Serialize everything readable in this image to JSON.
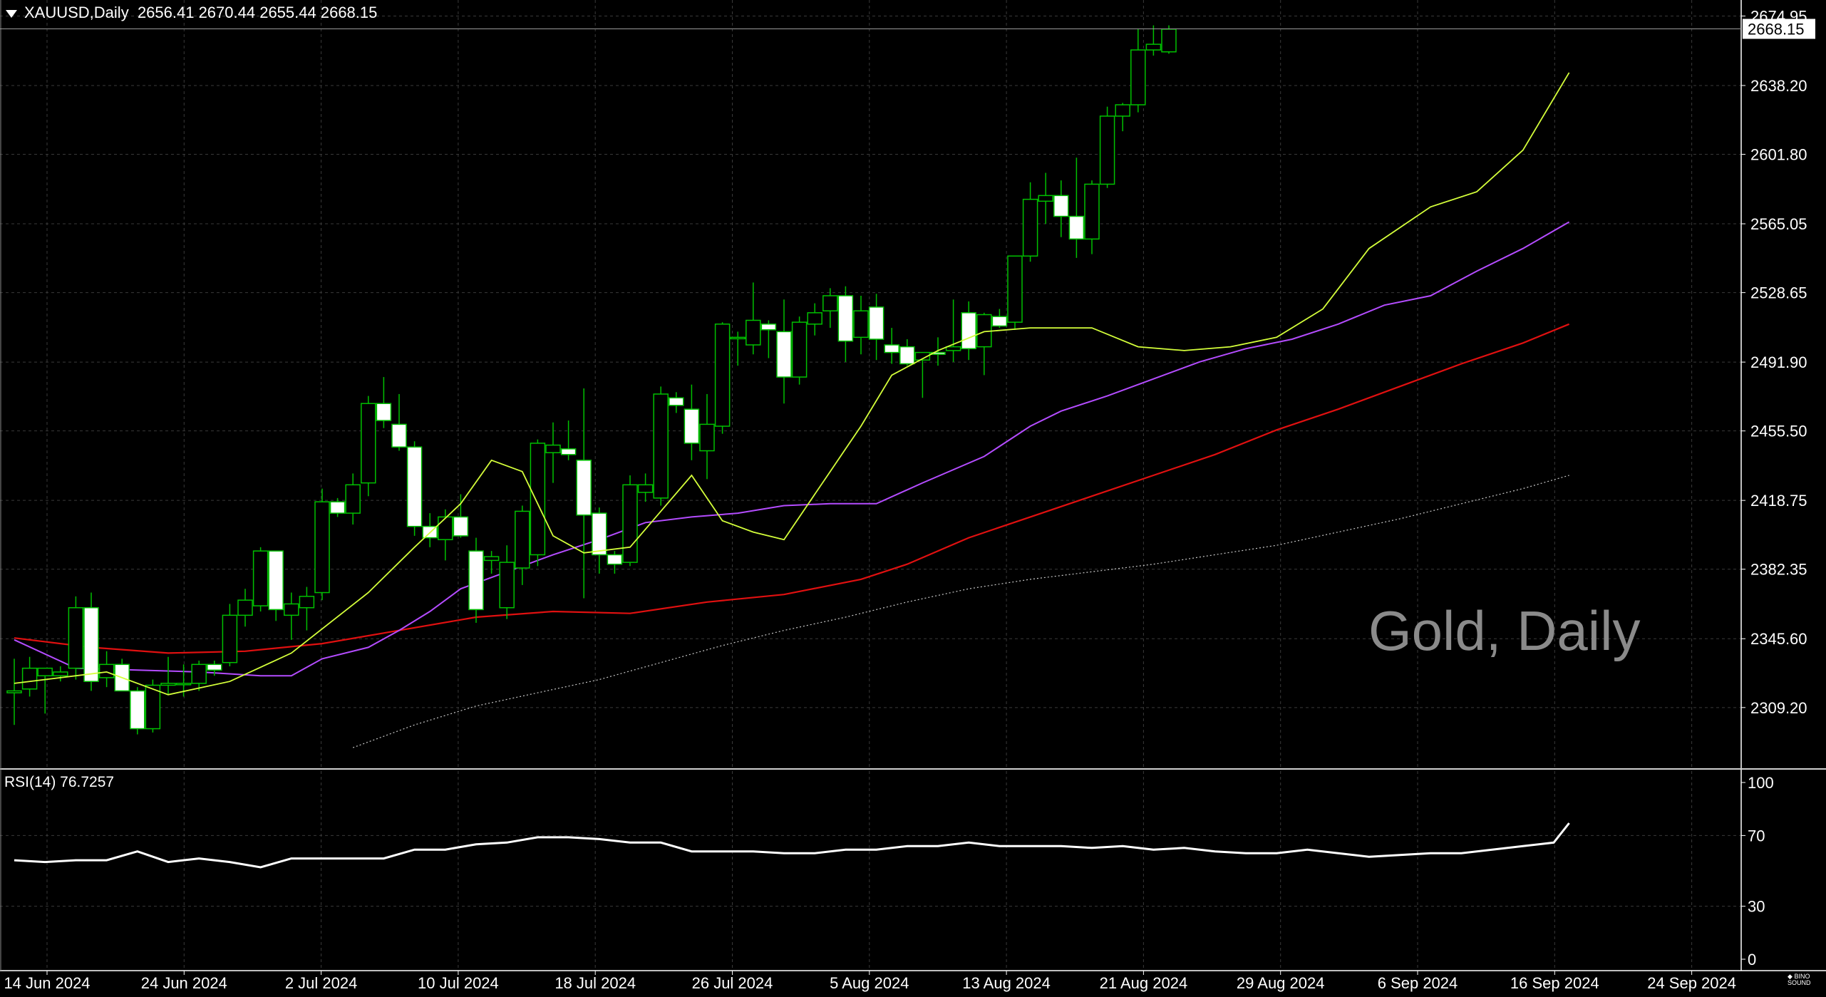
{
  "header": {
    "symbol": "XAUUSD,Daily",
    "ohlc": "2656.41 2670.44 2655.44 2668.15"
  },
  "watermark": "Gold, Daily",
  "rsi_label": "RSI(14) 76.7257",
  "logo_text": "BINO SOUND",
  "colors": {
    "background": "#000000",
    "grid": "#3a3a3a",
    "bull": "#00c000",
    "bear_fill": "#ffffff",
    "ma_fast": "#d4ff3a",
    "ma_mid": "#b44cff",
    "ma_slow": "#e01010",
    "ma_long": "#c8c8c8",
    "rsi": "#ffffff"
  },
  "chart_data": [
    {
      "type": "candlestick",
      "title": "XAUUSD,Daily",
      "current_price": "2668.15",
      "y_ticks": [
        "2674.95",
        "2638.20",
        "2601.80",
        "2565.05",
        "2528.65",
        "2491.90",
        "2455.50",
        "2418.75",
        "2382.35",
        "2345.60",
        "2309.20"
      ],
      "x_ticks": [
        "14 Jun 2024",
        "24 Jun 2024",
        "2 Jul 2024",
        "10 Jul 2024",
        "18 Jul 2024",
        "26 Jul 2024",
        "5 Aug 2024",
        "13 Aug 2024",
        "21 Aug 2024",
        "29 Aug 2024",
        "6 Sep 2024",
        "16 Sep 2024",
        "24 Sep 2024"
      ],
      "ylim": [
        2283,
        2686
      ],
      "grid": true,
      "ohlc": [
        [
          2317,
          2335,
          2300,
          2318
        ],
        [
          2319,
          2336,
          2315,
          2330
        ],
        [
          2326,
          2330,
          2306,
          2330
        ],
        [
          2326,
          2331,
          2323,
          2328
        ],
        [
          2330,
          2368,
          2324,
          2362
        ],
        [
          2362,
          2370,
          2318,
          2323
        ],
        [
          2325,
          2339,
          2320,
          2332
        ],
        [
          2332,
          2335,
          2318,
          2318
        ],
        [
          2318,
          2320,
          2295,
          2298
        ],
        [
          2298,
          2324,
          2296,
          2321
        ],
        [
          2321,
          2336,
          2316,
          2322
        ],
        [
          2322,
          2332,
          2315,
          2322
        ],
        [
          2322,
          2334,
          2318,
          2332
        ],
        [
          2332,
          2334,
          2326,
          2329
        ],
        [
          2333,
          2364,
          2331,
          2358
        ],
        [
          2358,
          2372,
          2352,
          2366
        ],
        [
          2363,
          2394,
          2360,
          2392
        ],
        [
          2392,
          2392,
          2355,
          2361
        ],
        [
          2358,
          2370,
          2345,
          2364
        ],
        [
          2362,
          2373,
          2350,
          2368
        ],
        [
          2370,
          2425,
          2366,
          2418
        ],
        [
          2418,
          2420,
          2410,
          2412
        ],
        [
          2412,
          2433,
          2406,
          2427
        ],
        [
          2428,
          2474,
          2421,
          2470
        ],
        [
          2470,
          2484,
          2457,
          2461
        ],
        [
          2459,
          2475,
          2445,
          2447
        ],
        [
          2447,
          2450,
          2400,
          2405
        ],
        [
          2405,
          2412,
          2394,
          2399
        ],
        [
          2398,
          2414,
          2387,
          2410
        ],
        [
          2410,
          2422,
          2399,
          2400
        ],
        [
          2392,
          2399,
          2354,
          2361
        ],
        [
          2387,
          2392,
          2380,
          2389
        ],
        [
          2362,
          2395,
          2356,
          2386
        ],
        [
          2383,
          2416,
          2374,
          2413
        ],
        [
          2390,
          2451,
          2384,
          2449
        ],
        [
          2444,
          2460,
          2428,
          2448
        ],
        [
          2446,
          2461,
          2440,
          2443
        ],
        [
          2440,
          2478,
          2367,
          2411
        ],
        [
          2412,
          2415,
          2380,
          2390
        ],
        [
          2390,
          2392,
          2380,
          2385
        ],
        [
          2386,
          2432,
          2384,
          2427
        ],
        [
          2423,
          2433,
          2418,
          2427
        ],
        [
          2420,
          2479,
          2416,
          2475
        ],
        [
          2473,
          2476,
          2465,
          2469
        ],
        [
          2467,
          2480,
          2440,
          2449
        ],
        [
          2445,
          2475,
          2430,
          2459
        ],
        [
          2458,
          2513,
          2454,
          2512
        ],
        [
          2505,
          2508,
          2490,
          2505
        ],
        [
          2501,
          2534,
          2496,
          2514
        ],
        [
          2512,
          2514,
          2494,
          2509
        ],
        [
          2508,
          2525,
          2470,
          2484
        ],
        [
          2484,
          2516,
          2480,
          2513
        ],
        [
          2512,
          2523,
          2506,
          2518
        ],
        [
          2519,
          2531,
          2510,
          2527
        ],
        [
          2527,
          2532,
          2492,
          2503
        ],
        [
          2505,
          2527,
          2496,
          2519
        ],
        [
          2521,
          2528,
          2493,
          2504
        ],
        [
          2501,
          2510,
          2491,
          2497
        ],
        [
          2500,
          2504,
          2490,
          2491
        ],
        [
          2493,
          2497,
          2473,
          2497
        ],
        [
          2497,
          2505,
          2490,
          2496
        ],
        [
          2498,
          2525,
          2492,
          2500
        ],
        [
          2518,
          2524,
          2493,
          2499
        ],
        [
          2500,
          2518,
          2485,
          2517
        ],
        [
          2516,
          2520,
          2510,
          2511
        ],
        [
          2513,
          2547,
          2509,
          2548
        ],
        [
          2548,
          2587,
          2545,
          2578
        ],
        [
          2577,
          2592,
          2565,
          2580
        ],
        [
          2580,
          2588,
          2558,
          2569
        ],
        [
          2569,
          2600,
          2547,
          2557
        ],
        [
          2557,
          2588,
          2549,
          2586
        ],
        [
          2586,
          2627,
          2584,
          2622
        ],
        [
          2622,
          2629,
          2614,
          2628
        ],
        [
          2628,
          2668,
          2624,
          2657
        ],
        [
          2657,
          2670,
          2654,
          2660
        ],
        [
          2656,
          2670,
          2655,
          2668
        ]
      ],
      "ma_fast": [
        [
          0,
          2322
        ],
        [
          6,
          2328
        ],
        [
          10,
          2316
        ],
        [
          14,
          2323
        ],
        [
          18,
          2338
        ],
        [
          23,
          2370
        ],
        [
          26,
          2394
        ],
        [
          29,
          2417
        ],
        [
          31,
          2440
        ],
        [
          33,
          2434
        ],
        [
          35,
          2400
        ],
        [
          37,
          2391
        ],
        [
          40,
          2394
        ],
        [
          42,
          2413
        ],
        [
          44,
          2432
        ],
        [
          46,
          2408
        ],
        [
          48,
          2402
        ],
        [
          50,
          2398
        ],
        [
          53,
          2434
        ],
        [
          55,
          2458
        ],
        [
          57,
          2485
        ],
        [
          60,
          2498
        ],
        [
          63,
          2508
        ],
        [
          66,
          2510
        ],
        [
          70,
          2510
        ],
        [
          73,
          2500
        ],
        [
          76,
          2498
        ],
        [
          79,
          2500
        ],
        [
          82,
          2505
        ],
        [
          85,
          2520
        ],
        [
          88,
          2552
        ],
        [
          92,
          2574
        ],
        [
          95,
          2582
        ],
        [
          98,
          2604
        ],
        [
          101,
          2645
        ]
      ],
      "ma_mid": [
        [
          0,
          2345
        ],
        [
          4,
          2330
        ],
        [
          8,
          2329
        ],
        [
          12,
          2328
        ],
        [
          16,
          2326
        ],
        [
          18,
          2326
        ],
        [
          20,
          2335
        ],
        [
          23,
          2341
        ],
        [
          25,
          2350
        ],
        [
          27,
          2360
        ],
        [
          29,
          2372
        ],
        [
          32,
          2381
        ],
        [
          35,
          2390
        ],
        [
          38,
          2398
        ],
        [
          41,
          2407
        ],
        [
          44,
          2410
        ],
        [
          47,
          2412
        ],
        [
          50,
          2416
        ],
        [
          53,
          2417
        ],
        [
          56,
          2417
        ],
        [
          59,
          2428
        ],
        [
          63,
          2442
        ],
        [
          66,
          2458
        ],
        [
          68,
          2466
        ],
        [
          71,
          2474
        ],
        [
          74,
          2483
        ],
        [
          77,
          2492
        ],
        [
          80,
          2499
        ],
        [
          83,
          2504
        ],
        [
          86,
          2512
        ],
        [
          89,
          2522
        ],
        [
          92,
          2527
        ],
        [
          95,
          2540
        ],
        [
          98,
          2552
        ],
        [
          101,
          2566
        ]
      ],
      "ma_slow": [
        [
          0,
          2346
        ],
        [
          5,
          2341
        ],
        [
          10,
          2338
        ],
        [
          15,
          2339
        ],
        [
          20,
          2343
        ],
        [
          25,
          2350
        ],
        [
          30,
          2357
        ],
        [
          35,
          2360
        ],
        [
          40,
          2359
        ],
        [
          45,
          2365
        ],
        [
          50,
          2369
        ],
        [
          55,
          2377
        ],
        [
          58,
          2385
        ],
        [
          62,
          2399
        ],
        [
          66,
          2410
        ],
        [
          70,
          2421
        ],
        [
          74,
          2432
        ],
        [
          78,
          2443
        ],
        [
          82,
          2456
        ],
        [
          86,
          2467
        ],
        [
          90,
          2479
        ],
        [
          94,
          2491
        ],
        [
          98,
          2502
        ],
        [
          101,
          2512
        ]
      ],
      "ma_long": [
        [
          22,
          2288
        ],
        [
          26,
          2300
        ],
        [
          30,
          2310
        ],
        [
          34,
          2317
        ],
        [
          38,
          2324
        ],
        [
          42,
          2333
        ],
        [
          46,
          2342
        ],
        [
          50,
          2350
        ],
        [
          54,
          2357
        ],
        [
          58,
          2365
        ],
        [
          62,
          2372
        ],
        [
          66,
          2377
        ],
        [
          70,
          2381
        ],
        [
          74,
          2385
        ],
        [
          78,
          2390
        ],
        [
          82,
          2395
        ],
        [
          86,
          2402
        ],
        [
          90,
          2409
        ],
        [
          94,
          2417
        ],
        [
          98,
          2425
        ],
        [
          101,
          2432
        ]
      ]
    },
    {
      "type": "line",
      "title": "RSI(14) 76.7257",
      "y_ticks": [
        "100",
        "70",
        "30",
        "0"
      ],
      "ylim": [
        0,
        100
      ],
      "values": [
        [
          0,
          56
        ],
        [
          2,
          55
        ],
        [
          4,
          56
        ],
        [
          6,
          56
        ],
        [
          8,
          61
        ],
        [
          10,
          55
        ],
        [
          12,
          57
        ],
        [
          14,
          55
        ],
        [
          16,
          52
        ],
        [
          18,
          57
        ],
        [
          20,
          57
        ],
        [
          22,
          57
        ],
        [
          24,
          57
        ],
        [
          26,
          62
        ],
        [
          28,
          62
        ],
        [
          30,
          65
        ],
        [
          32,
          66
        ],
        [
          34,
          69
        ],
        [
          36,
          69
        ],
        [
          38,
          68
        ],
        [
          40,
          66
        ],
        [
          42,
          66
        ],
        [
          44,
          61
        ],
        [
          46,
          61
        ],
        [
          48,
          61
        ],
        [
          50,
          60
        ],
        [
          52,
          60
        ],
        [
          54,
          62
        ],
        [
          56,
          62
        ],
        [
          58,
          64
        ],
        [
          60,
          64
        ],
        [
          62,
          66
        ],
        [
          64,
          64
        ],
        [
          66,
          64
        ],
        [
          68,
          64
        ],
        [
          70,
          63
        ],
        [
          72,
          64
        ],
        [
          74,
          62
        ],
        [
          76,
          63
        ],
        [
          78,
          61
        ],
        [
          80,
          60
        ],
        [
          82,
          60
        ],
        [
          84,
          62
        ],
        [
          86,
          60
        ],
        [
          88,
          58
        ],
        [
          90,
          59
        ],
        [
          92,
          60
        ],
        [
          94,
          60
        ],
        [
          96,
          62
        ],
        [
          98,
          64
        ],
        [
          100,
          66
        ],
        [
          101,
          77
        ]
      ]
    }
  ]
}
